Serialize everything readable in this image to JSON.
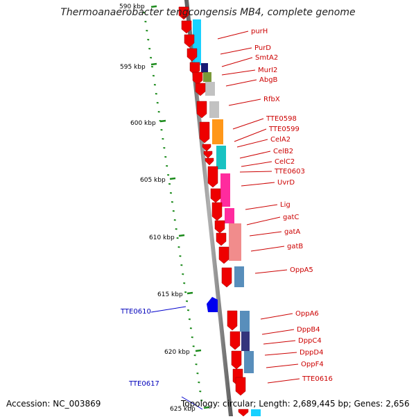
{
  "title": "Thermoanaerobacter tengcongensis MB4, complete genome",
  "accession": "Accession: NC_003869",
  "topology": "Topology: circular; Length: 2,689,445 bp; Genes: 2,656",
  "colors": {
    "axis": "#808080",
    "tick": "#1a8a1a",
    "forward_gene": "#ee0000",
    "reverse_gene": "#0000ee",
    "label_forward": "#cc0000",
    "label_reverse": "#0000bb"
  },
  "axis_labels": [
    {
      "id": "595",
      "text": "595 kbp"
    },
    {
      "id": "600",
      "text": "600 kbp"
    },
    {
      "id": "605",
      "text": "605 kbp"
    },
    {
      "id": "610",
      "text": "610 kbp"
    },
    {
      "id": "615",
      "text": "615 kbp"
    },
    {
      "id": "620",
      "text": "620 kbp"
    },
    {
      "id": "625",
      "text": "625 kbp"
    },
    {
      "id": "590",
      "text": "590 kbp"
    }
  ],
  "gene_labels": [
    {
      "id": "purH",
      "text": "purH"
    },
    {
      "id": "PurD",
      "text": "PurD"
    },
    {
      "id": "SmtA2",
      "text": "SmtA2"
    },
    {
      "id": "MurI2",
      "text": "MurI2"
    },
    {
      "id": "AbgB",
      "text": "AbgB"
    },
    {
      "id": "RfbX",
      "text": "RfbX"
    },
    {
      "id": "TTE0598",
      "text": "TTE0598"
    },
    {
      "id": "TTE0599",
      "text": "TTE0599"
    },
    {
      "id": "CelA2",
      "text": "CelA2"
    },
    {
      "id": "CelB2",
      "text": "CelB2"
    },
    {
      "id": "CelC2",
      "text": "CelC2"
    },
    {
      "id": "TTE0603",
      "text": "TTE0603"
    },
    {
      "id": "UvrD",
      "text": "UvrD"
    },
    {
      "id": "Lig",
      "text": "Lig"
    },
    {
      "id": "gatC",
      "text": "gatC"
    },
    {
      "id": "gatA",
      "text": "gatA"
    },
    {
      "id": "gatB",
      "text": "gatB"
    },
    {
      "id": "OppA5",
      "text": "OppA5"
    },
    {
      "id": "OppA6",
      "text": "OppA6"
    },
    {
      "id": "DppB4",
      "text": "DppB4"
    },
    {
      "id": "DppC4",
      "text": "DppC4"
    },
    {
      "id": "DppD4",
      "text": "DppD4"
    },
    {
      "id": "OppF4",
      "text": "OppF4"
    },
    {
      "id": "TTE0616",
      "text": "TTE0616"
    },
    {
      "id": "TTE0610",
      "text": "TTE0610"
    },
    {
      "id": "TTE0617",
      "text": "TTE0617"
    }
  ]
}
